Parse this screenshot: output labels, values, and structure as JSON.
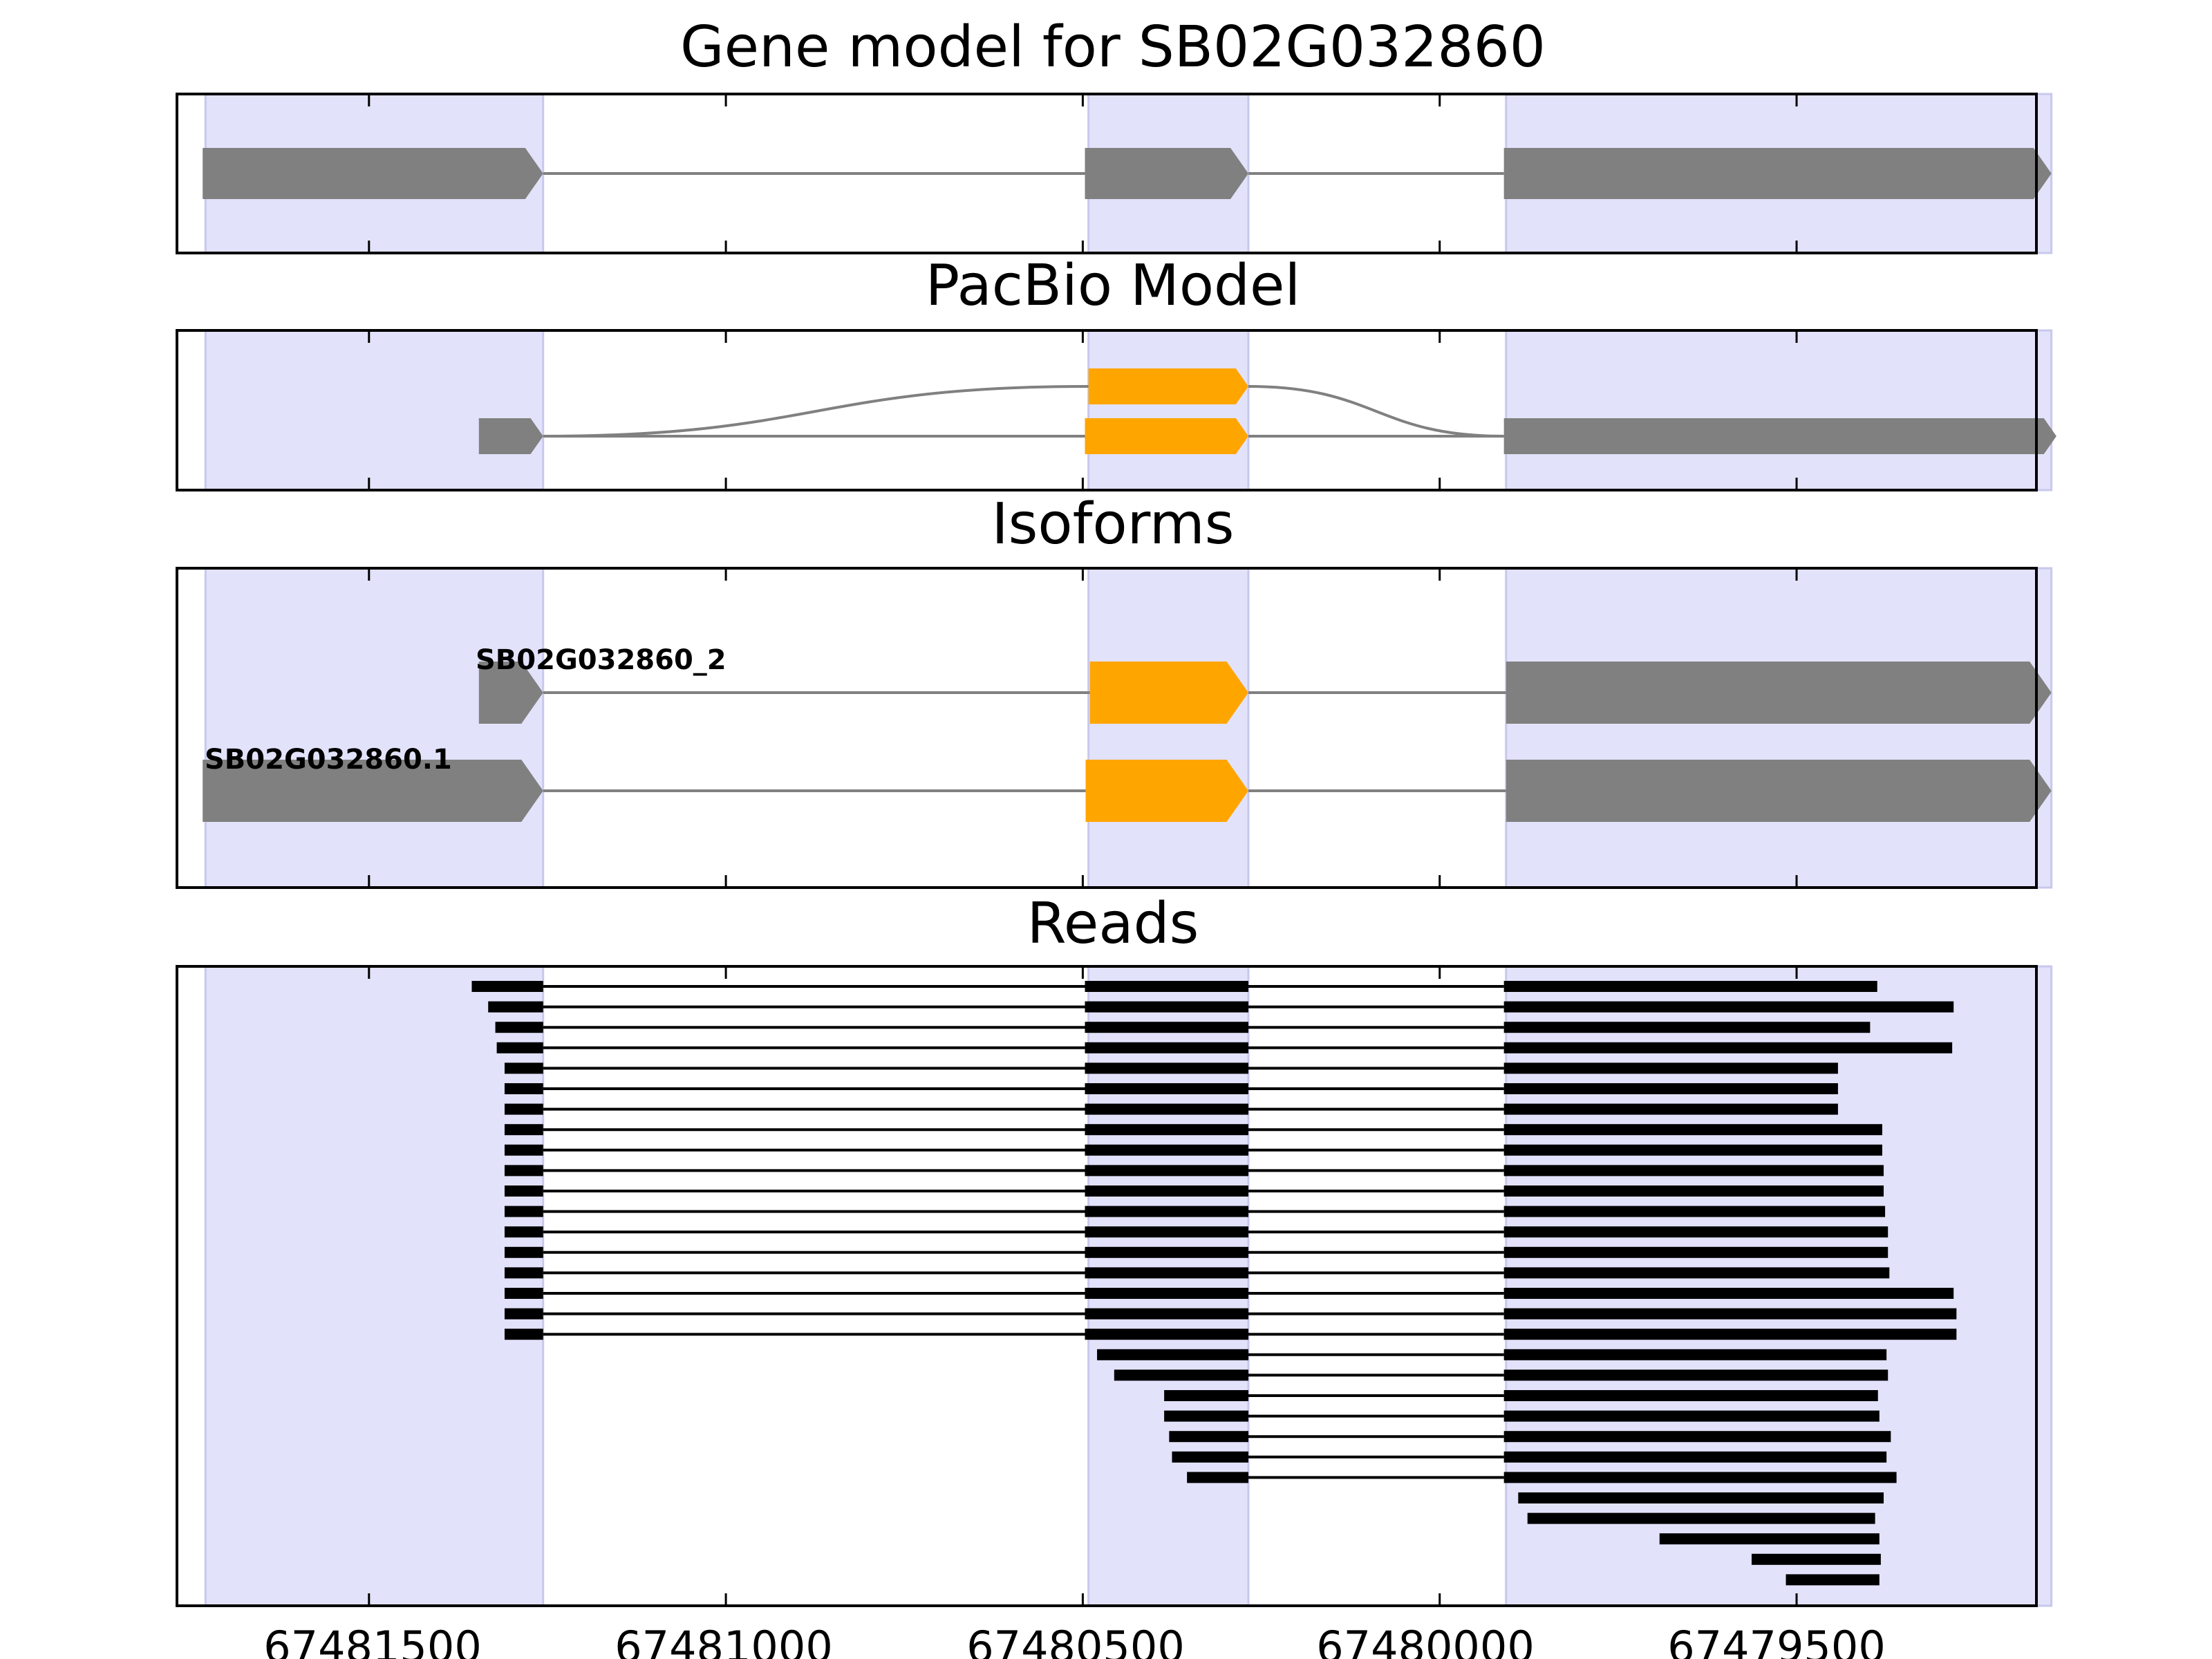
{
  "figure": {
    "axis_label_color": "#000000",
    "exon_gray": "#808080",
    "exon_orange": "#FFA500",
    "read_black": "#000000",
    "highlight_fill": "#E2E2FA",
    "highlight_edge": "#C8C8EE"
  },
  "chart_data": {
    "type": "gene_model",
    "x_axis": {
      "direction": "reversed",
      "range": [
        67481769,
        67479164
      ],
      "ticks": [
        67481500,
        67481000,
        67480500,
        67480000,
        67479500
      ],
      "tick_labels": [
        "67481500",
        "67481000",
        "67480500",
        "67480000",
        "67479500"
      ]
    },
    "highlight_regions": [
      [
        67481729,
        67481256
      ],
      [
        67480492,
        67480268
      ],
      [
        67479907,
        67479143
      ]
    ],
    "panels": [
      {
        "id": "gene-model",
        "title": "Gene model for SB02G032860",
        "transcripts": [
          {
            "label": "",
            "exons": [
              [
                67481733,
                67481256,
                "gray"
              ],
              [
                67480497,
                67480268,
                "gray"
              ],
              [
                67479910,
                67479143,
                "gray"
              ]
            ]
          }
        ]
      },
      {
        "id": "pacbio-model",
        "title": "PacBio Model",
        "transcripts": [
          {
            "label": "",
            "exons": [
              [
                67481346,
                67481256,
                "gray"
              ],
              [
                67480497,
                67480268,
                "orange"
              ],
              [
                67479910,
                67479136,
                "gray"
              ]
            ],
            "alt_exon": [
              67480492,
              67480268,
              "orange"
            ]
          }
        ]
      },
      {
        "id": "isoforms",
        "title": "Isoforms",
        "transcripts": [
          {
            "label": "SB02G032860_2",
            "exons": [
              [
                67481346,
                67481256,
                "gray"
              ],
              [
                67480490,
                67480268,
                "orange"
              ],
              [
                67479907,
                67479143,
                "gray"
              ]
            ]
          },
          {
            "label": "SB02G032860.1",
            "exons": [
              [
                67481733,
                67481256,
                "gray"
              ],
              [
                67480496,
                67480268,
                "orange"
              ],
              [
                67479907,
                67479143,
                "gray"
              ]
            ]
          }
        ]
      },
      {
        "id": "reads",
        "title": "Reads",
        "reads": [
          [
            67481356,
            67479387
          ],
          [
            67481333,
            67479280
          ],
          [
            67481323,
            67479397
          ],
          [
            67481321,
            67479282
          ],
          [
            67481310,
            67479442
          ],
          [
            67481310,
            67479442
          ],
          [
            67481310,
            67479442
          ],
          [
            67481310,
            67479380
          ],
          [
            67481310,
            67479380
          ],
          [
            67481310,
            67479378
          ],
          [
            67481310,
            67479378
          ],
          [
            67481310,
            67479376
          ],
          [
            67481310,
            67479372
          ],
          [
            67481310,
            67479372
          ],
          [
            67481310,
            67479370
          ],
          [
            67481310,
            67479280
          ],
          [
            67481310,
            67479276
          ],
          [
            67481310,
            67479276
          ],
          [
            67480480,
            67479374
          ],
          [
            67480456,
            67479372
          ],
          [
            67480386,
            67479386
          ],
          [
            67480386,
            67479384
          ],
          [
            67480379,
            67479368
          ],
          [
            67480375,
            67479374
          ],
          [
            67480354,
            67479360
          ],
          [
            67479890,
            67479378
          ],
          [
            67479877,
            67479390
          ],
          [
            67479692,
            67479384
          ],
          [
            67479563,
            67479382
          ],
          [
            67479515,
            67479384
          ]
        ]
      }
    ]
  }
}
